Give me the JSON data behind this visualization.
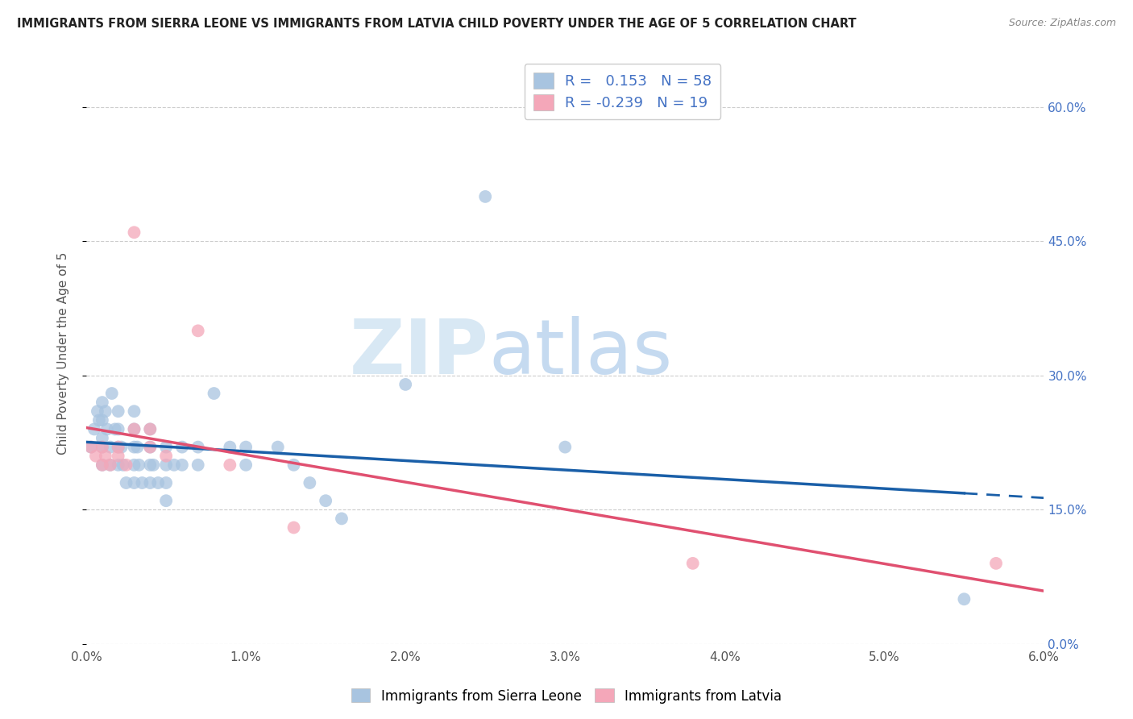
{
  "title": "IMMIGRANTS FROM SIERRA LEONE VS IMMIGRANTS FROM LATVIA CHILD POVERTY UNDER THE AGE OF 5 CORRELATION CHART",
  "source": "Source: ZipAtlas.com",
  "ylabel": "Child Poverty Under the Age of 5",
  "xmin": 0.0,
  "xmax": 0.06,
  "ymin": 0.0,
  "ymax": 0.65,
  "right_yticks": [
    0.0,
    0.15,
    0.3,
    0.45,
    0.6
  ],
  "right_yticklabels": [
    "0.0%",
    "15.0%",
    "30.0%",
    "45.0%",
    "60.0%"
  ],
  "xticks": [
    0.0,
    0.01,
    0.02,
    0.03,
    0.04,
    0.05,
    0.06
  ],
  "xticklabels": [
    "0.0%",
    "1.0%",
    "2.0%",
    "3.0%",
    "4.0%",
    "5.0%",
    "6.0%"
  ],
  "legend_labels": [
    "Immigrants from Sierra Leone",
    "Immigrants from Latvia"
  ],
  "R_sierra": 0.153,
  "N_sierra": 58,
  "R_latvia": -0.239,
  "N_latvia": 19,
  "color_sierra": "#a8c4e0",
  "color_latvia": "#f4a7b9",
  "line_color_sierra": "#1a5fa8",
  "line_color_latvia": "#e05070",
  "watermark_zip": "ZIP",
  "watermark_atlas": "atlas",
  "sierra_x": [
    0.0003,
    0.0005,
    0.0007,
    0.0008,
    0.001,
    0.001,
    0.001,
    0.001,
    0.001,
    0.0012,
    0.0013,
    0.0015,
    0.0015,
    0.0016,
    0.0018,
    0.002,
    0.002,
    0.002,
    0.002,
    0.0022,
    0.0023,
    0.0025,
    0.003,
    0.003,
    0.003,
    0.003,
    0.003,
    0.0032,
    0.0033,
    0.0035,
    0.004,
    0.004,
    0.004,
    0.004,
    0.0042,
    0.0045,
    0.005,
    0.005,
    0.005,
    0.005,
    0.0055,
    0.006,
    0.006,
    0.007,
    0.007,
    0.008,
    0.009,
    0.01,
    0.01,
    0.012,
    0.013,
    0.014,
    0.015,
    0.016,
    0.02,
    0.025,
    0.03,
    0.055
  ],
  "sierra_y": [
    0.22,
    0.24,
    0.26,
    0.25,
    0.27,
    0.25,
    0.23,
    0.22,
    0.2,
    0.26,
    0.24,
    0.22,
    0.2,
    0.28,
    0.24,
    0.26,
    0.24,
    0.22,
    0.2,
    0.22,
    0.2,
    0.18,
    0.26,
    0.24,
    0.22,
    0.2,
    0.18,
    0.22,
    0.2,
    0.18,
    0.24,
    0.22,
    0.2,
    0.18,
    0.2,
    0.18,
    0.22,
    0.2,
    0.18,
    0.16,
    0.2,
    0.22,
    0.2,
    0.22,
    0.2,
    0.28,
    0.22,
    0.22,
    0.2,
    0.22,
    0.2,
    0.18,
    0.16,
    0.14,
    0.29,
    0.5,
    0.22,
    0.05
  ],
  "latvia_x": [
    0.0003,
    0.0006,
    0.001,
    0.001,
    0.0012,
    0.0015,
    0.002,
    0.002,
    0.0025,
    0.003,
    0.003,
    0.004,
    0.004,
    0.005,
    0.007,
    0.009,
    0.013,
    0.038,
    0.057
  ],
  "latvia_y": [
    0.22,
    0.21,
    0.22,
    0.2,
    0.21,
    0.2,
    0.22,
    0.21,
    0.2,
    0.46,
    0.24,
    0.24,
    0.22,
    0.21,
    0.35,
    0.2,
    0.13,
    0.09,
    0.09
  ],
  "grid_color": "#cccccc",
  "bg_color": "#ffffff",
  "sierra_line_start_x": 0.0,
  "sierra_line_end_solid_x": 0.03,
  "sierra_line_end_dash_x": 0.06,
  "latvia_line_start_x": 0.0,
  "latvia_line_end_x": 0.06
}
